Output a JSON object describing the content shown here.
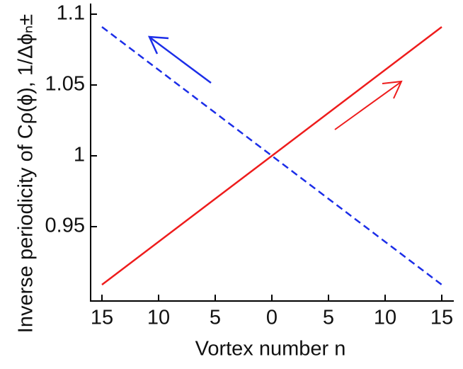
{
  "chart_data": {
    "type": "line",
    "xlabel": "Vortex number n",
    "ylabel": "Inverse periodicity of Cρ(ϕ), 1/Δϕₙ±",
    "xlim": [
      -16,
      16
    ],
    "ylim": [
      0.8975,
      1.1075
    ],
    "xticks": [
      {
        "value": -15,
        "label": "15"
      },
      {
        "value": -10,
        "label": "10"
      },
      {
        "value": -5,
        "label": "5"
      },
      0,
      5,
      10,
      15
    ],
    "yticks": [
      0.95,
      1,
      1.05,
      1.1
    ],
    "series": [
      {
        "color": "#ee1c1c",
        "linestyle": "solid",
        "x": [
          -15,
          15
        ],
        "values": [
          0.909,
          1.091
        ]
      },
      {
        "color": "#1c2ee8",
        "linestyle": "dashed",
        "x": [
          -15,
          15
        ],
        "values": [
          1.091,
          0.909
        ]
      }
    ]
  }
}
